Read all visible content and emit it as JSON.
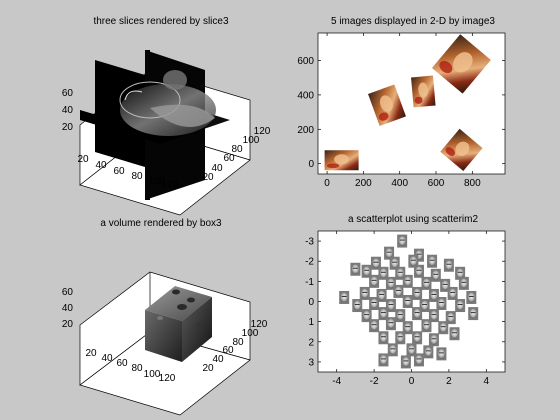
{
  "figure": {
    "background": "#c8c8c8"
  },
  "chart_data": [
    {
      "type": "volume-slices-3d",
      "title": "three slices rendered by slice3",
      "x_ticks": [
        "20",
        "40",
        "60",
        "80",
        "100",
        "120"
      ],
      "y_ticks": [
        "20",
        "40",
        "60",
        "80",
        "100",
        "120"
      ],
      "z_ticks": [
        "20",
        "40",
        "60"
      ]
    },
    {
      "type": "image-placement-2d",
      "title": "5 images displayed in 2-D by image3",
      "x_ticks": [
        "0",
        "200",
        "400",
        "600",
        "800"
      ],
      "y_ticks": [
        "0",
        "200",
        "400",
        "600"
      ],
      "xlim": [
        -50,
        980
      ],
      "ylim": [
        -60,
        760
      ],
      "images": [
        {
          "x": 80,
          "y": 20,
          "angle": 0
        },
        {
          "x": 330,
          "y": 340,
          "angle": -20
        },
        {
          "x": 530,
          "y": 420,
          "angle": -5
        },
        {
          "x": 740,
          "y": 580,
          "angle": 40
        },
        {
          "x": 740,
          "y": 80,
          "angle": 40
        }
      ]
    },
    {
      "type": "volume-box-3d",
      "title": "a volume rendered by box3",
      "x_ticks": [
        "20",
        "40",
        "60",
        "80",
        "100",
        "120"
      ],
      "y_ticks": [
        "20",
        "40",
        "60",
        "80",
        "100",
        "120"
      ],
      "z_ticks": [
        "20",
        "40",
        "60"
      ]
    },
    {
      "type": "scatter",
      "title": "a scatterplot using scatterim2",
      "x_ticks": [
        "-4",
        "-2",
        "0",
        "2",
        "4"
      ],
      "y_ticks": [
        "-3",
        "-2",
        "-1",
        "0",
        "1",
        "2",
        "3"
      ],
      "xlim": [
        -5,
        5
      ],
      "ylim": [
        -3.5,
        3.5
      ],
      "y_reversed": true,
      "points": [
        {
          "x": -0.5,
          "y": -3.0
        },
        {
          "x": -1.2,
          "y": -2.4
        },
        {
          "x": 0.4,
          "y": -2.3
        },
        {
          "x": -1.9,
          "y": -1.9
        },
        {
          "x": -0.9,
          "y": -1.9
        },
        {
          "x": 0.1,
          "y": -2.0
        },
        {
          "x": 1.1,
          "y": -2.0
        },
        {
          "x": 2.0,
          "y": -1.8
        },
        {
          "x": -3.0,
          "y": -1.6
        },
        {
          "x": -2.4,
          "y": -1.5
        },
        {
          "x": -1.5,
          "y": -1.4
        },
        {
          "x": -0.6,
          "y": -1.4
        },
        {
          "x": 0.4,
          "y": -1.5
        },
        {
          "x": 1.3,
          "y": -1.3
        },
        {
          "x": 2.6,
          "y": -1.4
        },
        {
          "x": -2.0,
          "y": -1.0
        },
        {
          "x": -1.1,
          "y": -0.9
        },
        {
          "x": -0.2,
          "y": -1.0
        },
        {
          "x": 0.8,
          "y": -0.9
        },
        {
          "x": 1.8,
          "y": -0.8
        },
        {
          "x": 2.8,
          "y": -0.9
        },
        {
          "x": -3.6,
          "y": -0.2
        },
        {
          "x": -2.5,
          "y": -0.4
        },
        {
          "x": -1.6,
          "y": -0.3
        },
        {
          "x": -0.7,
          "y": -0.5
        },
        {
          "x": 0.3,
          "y": -0.4
        },
        {
          "x": 1.2,
          "y": -0.3
        },
        {
          "x": 2.2,
          "y": -0.4
        },
        {
          "x": 3.2,
          "y": -0.2
        },
        {
          "x": -2.9,
          "y": 0.2
        },
        {
          "x": -2.0,
          "y": 0.1
        },
        {
          "x": -1.1,
          "y": 0.2
        },
        {
          "x": -0.2,
          "y": 0.0
        },
        {
          "x": 0.7,
          "y": 0.2
        },
        {
          "x": 1.6,
          "y": 0.1
        },
        {
          "x": 2.6,
          "y": 0.2
        },
        {
          "x": -2.4,
          "y": 0.7
        },
        {
          "x": -1.5,
          "y": 0.6
        },
        {
          "x": -0.6,
          "y": 0.7
        },
        {
          "x": 0.3,
          "y": 0.6
        },
        {
          "x": 1.2,
          "y": 0.7
        },
        {
          "x": 2.1,
          "y": 0.8
        },
        {
          "x": 3.3,
          "y": 0.6
        },
        {
          "x": -2.0,
          "y": 1.2
        },
        {
          "x": -1.1,
          "y": 1.1
        },
        {
          "x": -0.2,
          "y": 1.3
        },
        {
          "x": 0.8,
          "y": 1.2
        },
        {
          "x": 1.7,
          "y": 1.3
        },
        {
          "x": -1.5,
          "y": 1.8
        },
        {
          "x": -0.6,
          "y": 1.8
        },
        {
          "x": 0.3,
          "y": 1.8
        },
        {
          "x": 1.2,
          "y": 1.9
        },
        {
          "x": 2.3,
          "y": 1.6
        },
        {
          "x": -1.0,
          "y": 2.4
        },
        {
          "x": 0.0,
          "y": 2.4
        },
        {
          "x": 0.9,
          "y": 2.5
        },
        {
          "x": -1.5,
          "y": 2.9
        },
        {
          "x": 0.4,
          "y": 2.9
        },
        {
          "x": 1.6,
          "y": 2.6
        },
        {
          "x": -0.3,
          "y": 3.0
        }
      ]
    }
  ]
}
